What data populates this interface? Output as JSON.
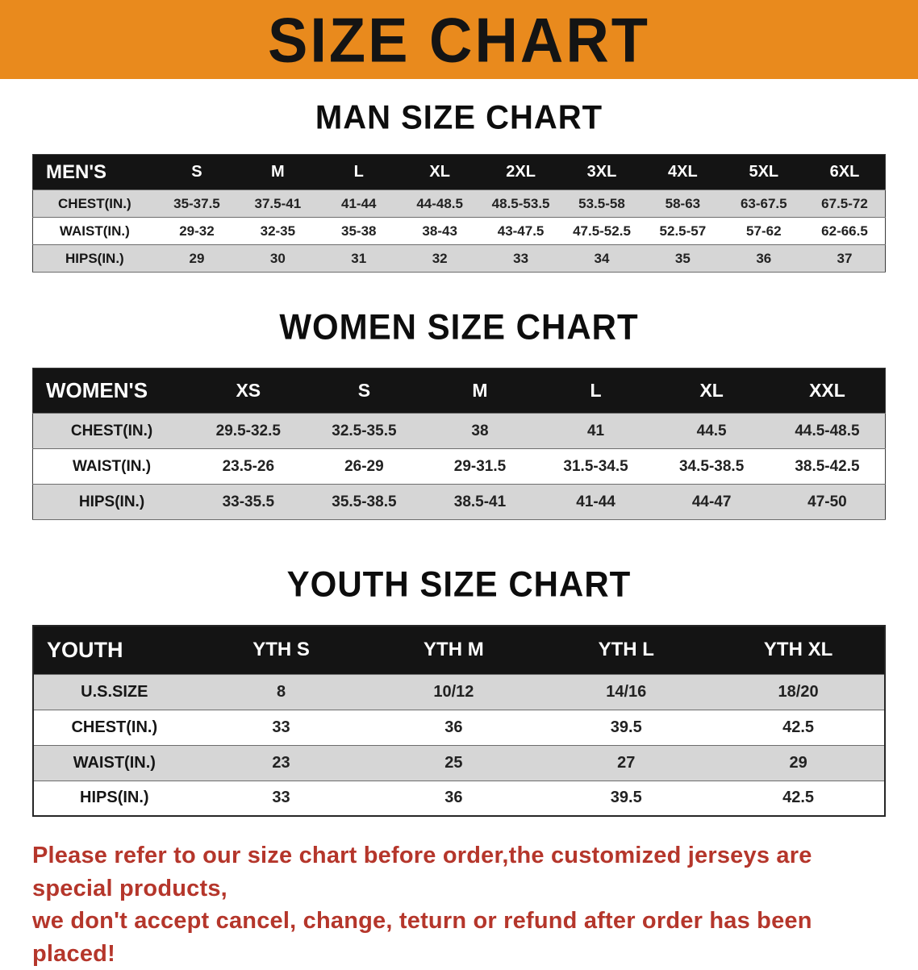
{
  "banner": {
    "title": "SIZE CHART",
    "bg_color": "#e98a1d",
    "text_color": "#141414"
  },
  "men": {
    "heading": "MAN SIZE CHART",
    "table": {
      "header": [
        "MEN'S",
        "S",
        "M",
        "L",
        "XL",
        "2XL",
        "3XL",
        "4XL",
        "5XL",
        "6XL"
      ],
      "rows": [
        [
          "CHEST(IN.)",
          "35-37.5",
          "37.5-41",
          "41-44",
          "44-48.5",
          "48.5-53.5",
          "53.5-58",
          "58-63",
          "63-67.5",
          "67.5-72"
        ],
        [
          "WAIST(IN.)",
          "29-32",
          "32-35",
          "35-38",
          "38-43",
          "43-47.5",
          "47.5-52.5",
          "52.5-57",
          "57-62",
          "62-66.5"
        ],
        [
          "HIPS(IN.)",
          "29",
          "30",
          "31",
          "32",
          "33",
          "34",
          "35",
          "36",
          "37"
        ]
      ]
    }
  },
  "women": {
    "heading": "WOMEN SIZE CHART",
    "table": {
      "header": [
        "WOMEN'S",
        "XS",
        "S",
        "M",
        "L",
        "XL",
        "XXL"
      ],
      "rows": [
        [
          "CHEST(IN.)",
          "29.5-32.5",
          "32.5-35.5",
          "38",
          "41",
          "44.5",
          "44.5-48.5"
        ],
        [
          "WAIST(IN.)",
          "23.5-26",
          "26-29",
          "29-31.5",
          "31.5-34.5",
          "34.5-38.5",
          "38.5-42.5"
        ],
        [
          "HIPS(IN.)",
          "33-35.5",
          "35.5-38.5",
          "38.5-41",
          "41-44",
          "44-47",
          "47-50"
        ]
      ]
    }
  },
  "youth": {
    "heading": "YOUTH SIZE CHART",
    "table": {
      "header": [
        "YOUTH",
        "YTH S",
        "YTH M",
        "YTH L",
        "YTH XL"
      ],
      "rows": [
        [
          "U.S.SIZE",
          "8",
          "10/12",
          "14/16",
          "18/20"
        ],
        [
          "CHEST(IN.)",
          "33",
          "36",
          "39.5",
          "42.5"
        ],
        [
          "WAIST(IN.)",
          "23",
          "25",
          "27",
          "29"
        ],
        [
          "HIPS(IN.)",
          "33",
          "36",
          "39.5",
          "42.5"
        ]
      ]
    }
  },
  "disclaimer": {
    "line1": "Please refer to our size chart before order,the customized jerseys are special products,",
    "line2": "we don't accept cancel, change, teturn or refund after order has been placed!",
    "color": "#b5362b"
  }
}
